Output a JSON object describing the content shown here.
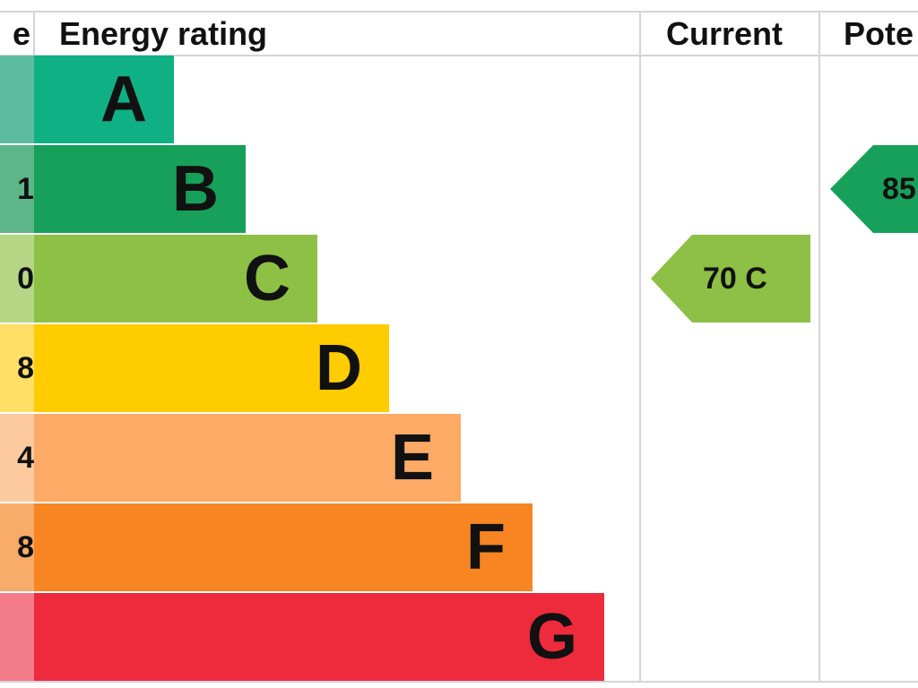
{
  "chart_data": {
    "type": "table",
    "headers": {
      "score": "e",
      "rating": "Energy rating",
      "current": "Current",
      "potential": "Pote"
    },
    "bands": [
      {
        "letter": "A",
        "score": "",
        "color": "#0fb084",
        "score_color": "#5dbba0",
        "width": 1
      },
      {
        "letter": "B",
        "score": "1",
        "color": "#17a05a",
        "score_color": "#5db68a",
        "width": 2
      },
      {
        "letter": "C",
        "score": "0",
        "color": "#8dc044",
        "score_color": "#b5d685",
        "width": 3
      },
      {
        "letter": "D",
        "score": "8",
        "color": "#ffcc00",
        "score_color": "#ffdf66",
        "width": 4
      },
      {
        "letter": "E",
        "score": "4",
        "color": "#fcaa65",
        "score_color": "#fdcaa0",
        "width": 5
      },
      {
        "letter": "F",
        "score": "8",
        "color": "#f78521",
        "score_color": "#f9ab6a",
        "width": 6
      },
      {
        "letter": "G",
        "score": "",
        "color": "#ee2a3d",
        "score_color": "#f47b88",
        "width": 7
      }
    ],
    "current": {
      "value": "70",
      "band": "C",
      "label": "70  C",
      "color": "#8dc044"
    },
    "potential": {
      "value": "85",
      "band": "B",
      "label": "85",
      "color": "#17a05a"
    }
  }
}
